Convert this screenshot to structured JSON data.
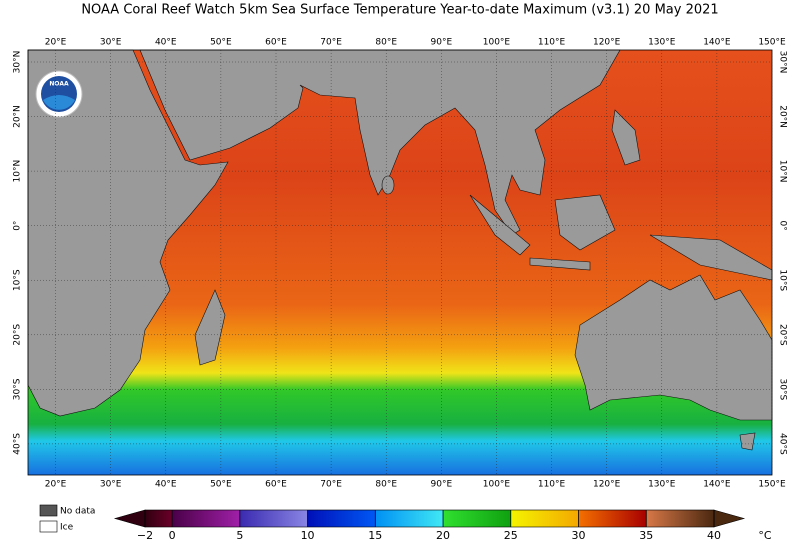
{
  "title": "NOAA Coral Reef Watch 5km Sea Surface Temperature Year-to-date Maximum  (v3.1)   20 May 2021",
  "logo": "NOAA",
  "lon_range": [
    15,
    150
  ],
  "lat_range": [
    32.2,
    -45.7
  ],
  "lon_ticks": [
    {
      "value": 20,
      "label": "20°E"
    },
    {
      "value": 30,
      "label": "30°E"
    },
    {
      "value": 40,
      "label": "40°E"
    },
    {
      "value": 50,
      "label": "50°E"
    },
    {
      "value": 60,
      "label": "60°E"
    },
    {
      "value": 70,
      "label": "70°E"
    },
    {
      "value": 80,
      "label": "80°E"
    },
    {
      "value": 90,
      "label": "90°E"
    },
    {
      "value": 100,
      "label": "100°E"
    },
    {
      "value": 110,
      "label": "110°E"
    },
    {
      "value": 120,
      "label": "120°E"
    },
    {
      "value": 130,
      "label": "130°E"
    },
    {
      "value": 140,
      "label": "140°E"
    },
    {
      "value": 150,
      "label": "150°E"
    }
  ],
  "lat_ticks": [
    {
      "value": 30,
      "label": "30°N"
    },
    {
      "value": 20,
      "label": "20°N"
    },
    {
      "value": 10,
      "label": "10°N"
    },
    {
      "value": 0,
      "label": "0°"
    },
    {
      "value": -10,
      "label": "10°S"
    },
    {
      "value": -20,
      "label": "20°S"
    },
    {
      "value": -30,
      "label": "30°S"
    },
    {
      "value": -40,
      "label": "40°S"
    }
  ],
  "legend": [
    {
      "label": "No data",
      "color": "#555555"
    },
    {
      "label": "Ice",
      "color": "#ffffff"
    }
  ],
  "colorbar": {
    "range": [
      -2,
      40
    ],
    "unit": "°C",
    "ticks": [
      {
        "value": -2,
        "label": "−2"
      },
      0,
      5,
      10,
      15,
      20,
      25,
      30,
      35,
      40
    ],
    "colors": [
      [
        "#300010",
        "#6a0028"
      ],
      [
        "#4a0048",
        "#a020a8"
      ],
      [
        "#3a2ab0",
        "#8a86e4"
      ],
      [
        "#0010b8",
        "#0058f4"
      ],
      [
        "#0090f4",
        "#40e8f4"
      ],
      [
        "#30e030",
        "#10a010"
      ],
      [
        "#f4f400",
        "#f4a800"
      ],
      [
        "#f47000",
        "#a80000"
      ],
      [
        "#d87848",
        "#4a2810"
      ]
    ]
  }
}
